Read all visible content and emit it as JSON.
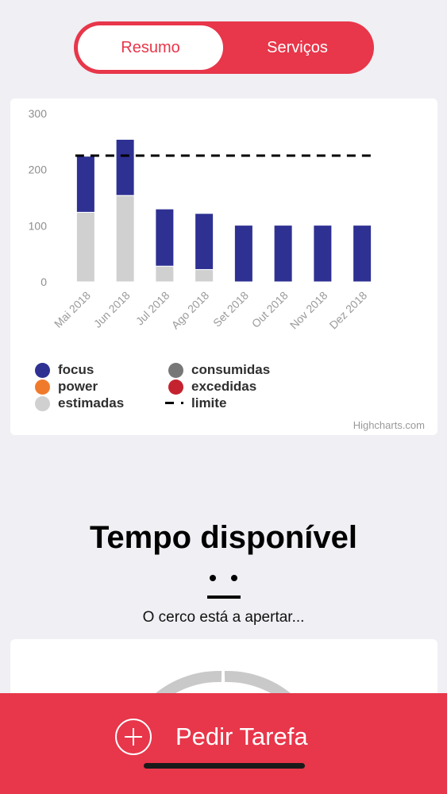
{
  "tabs": {
    "active_label": "Resumo",
    "inactive_label": "Serviços"
  },
  "colors": {
    "accent": "#e8364a",
    "focus": "#2e3192",
    "consumidas": "#777777",
    "power": "#f07a2b",
    "excedidas": "#c4222f",
    "estimadas": "#d0d0d0",
    "limite": "#000000"
  },
  "chart_data": {
    "type": "bar",
    "stacked": true,
    "categories": [
      "Mai 2018",
      "Jun 2018",
      "Jul 2018",
      "Ago 2018",
      "Set 2018",
      "Out 2018",
      "Nov 2018",
      "Dez 2018"
    ],
    "series": [
      {
        "name": "estimadas",
        "values": [
          124,
          154,
          28,
          22,
          0,
          0,
          0,
          0
        ]
      },
      {
        "name": "focus",
        "values": [
          100,
          100,
          102,
          100,
          101,
          101,
          101,
          101
        ]
      },
      {
        "name": "power",
        "values": [
          0,
          0,
          0,
          0,
          0,
          0,
          0,
          0
        ]
      },
      {
        "name": "consumidas",
        "values": [
          0,
          0,
          0,
          0,
          0,
          0,
          0,
          0
        ]
      },
      {
        "name": "excedidas",
        "values": [
          0,
          0,
          0,
          0,
          0,
          0,
          0,
          0
        ]
      }
    ],
    "limite": 225,
    "y_ticks": [
      "0",
      "100",
      "200",
      "300"
    ],
    "ylim": [
      0,
      300
    ],
    "grid": false,
    "legend_placement": "bottom-left",
    "credits": "Highcharts.com"
  },
  "legend": [
    {
      "label": "focus",
      "icon": "dot",
      "color": "#2e3192"
    },
    {
      "label": "power",
      "icon": "dot",
      "color": "#f07a2b"
    },
    {
      "label": "estimadas",
      "icon": "dot",
      "color": "#d0d0d0"
    },
    {
      "label": "consumidas",
      "icon": "dot",
      "color": "#777777"
    },
    {
      "label": "excedidas",
      "icon": "dot",
      "color": "#c4222f"
    },
    {
      "label": "limite",
      "icon": "dash",
      "color": "#000000"
    }
  ],
  "available": {
    "title": "Tempo disponível",
    "face_icon": "neutral-face-icon",
    "subtitle": "O cerco está a apertar..."
  },
  "action": {
    "label": "Pedir Tarefa",
    "icon": "plus-circle-icon"
  }
}
